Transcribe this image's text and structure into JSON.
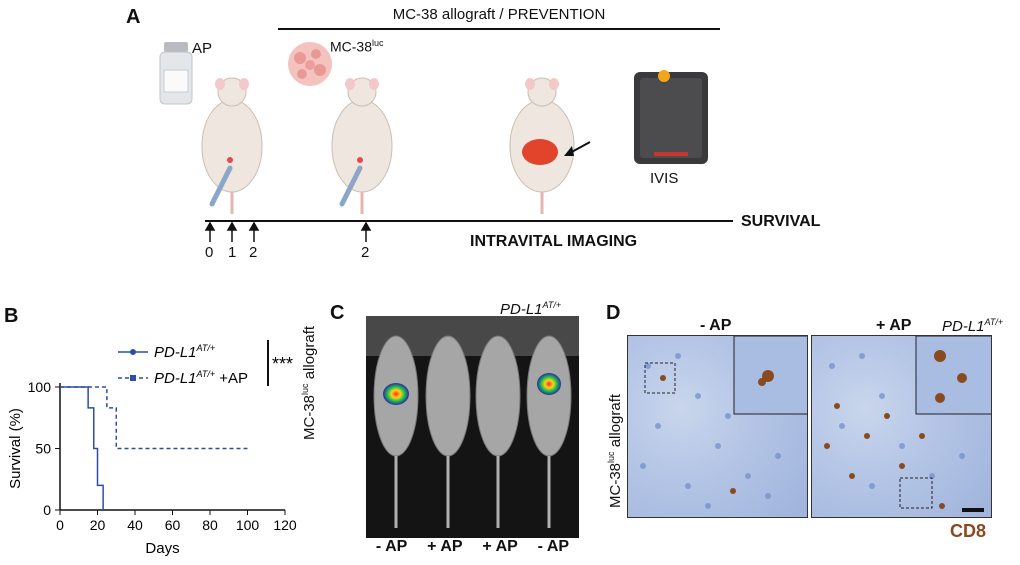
{
  "figure": {
    "panelA": {
      "letter": "A",
      "header": "MC-38 allograft / PREVENTION",
      "ap_bottle_label": "AP",
      "cells_label": "MC-38",
      "cells_superscript": "luc",
      "ivis_label": "IVIS",
      "survival_label": "SURVIVAL",
      "imaging_label": "INTRAVITAL IMAGING",
      "timeline_days": [
        "0",
        "1",
        "2",
        "2"
      ]
    },
    "panelB": {
      "letter": "B"
    },
    "panelC": {
      "letter": "C",
      "genotype": "PD-L1",
      "genotype_sup": "AT/+",
      "side_label": "MC-38",
      "side_label_sup": "luc",
      "side_label_rest": " allograft",
      "bottom_labels": [
        "- AP",
        "+ AP",
        "+ AP",
        "- AP"
      ],
      "signal_present": [
        true,
        false,
        false,
        true
      ]
    },
    "panelD": {
      "letter": "D",
      "left_title": "- AP",
      "right_title": "+ AP",
      "genotype": "PD-L1",
      "genotype_sup": "AT/+",
      "side_label": "MC-38",
      "side_label_sup": "luc",
      "side_label_rest": " allograft",
      "stain_label": "CD8",
      "stain_color": "#8a4a1f"
    }
  },
  "chart_data": {
    "type": "line",
    "subtype": "kaplan-meier",
    "xlabel": "Days",
    "ylabel": "Survival (%)",
    "xlim": [
      0,
      120
    ],
    "ylim": [
      0,
      100
    ],
    "xticks": [
      0,
      20,
      40,
      60,
      80,
      100,
      120
    ],
    "yticks": [
      0,
      50,
      100
    ],
    "significance": "***",
    "series": [
      {
        "name": "PD-L1",
        "name_sup": "AT/+",
        "name_suffix": "",
        "style": "solid",
        "color": "#2c4fa3",
        "x": [
          0,
          15,
          15,
          18,
          18,
          20,
          20,
          23,
          23
        ],
        "y": [
          100,
          100,
          83,
          83,
          50,
          50,
          20,
          20,
          0
        ]
      },
      {
        "name": "PD-L1",
        "name_sup": "AT/+",
        "name_suffix": " +AP",
        "style": "dashed",
        "color": "#2c4fa3",
        "x": [
          0,
          25,
          25,
          30,
          30,
          100
        ],
        "y": [
          100,
          100,
          83,
          83,
          50,
          50
        ]
      }
    ]
  }
}
